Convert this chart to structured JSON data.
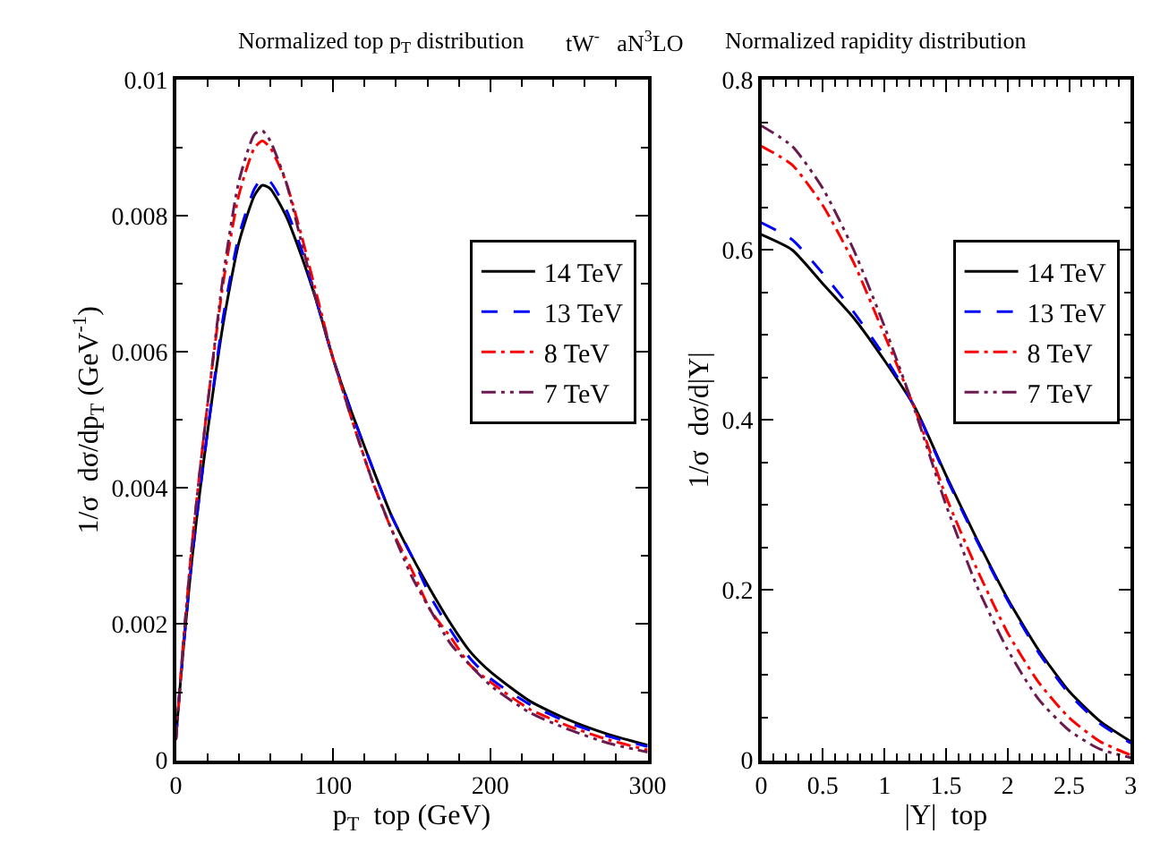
{
  "chart_data": [
    {
      "type": "line",
      "title": "Normalized top p$_{T}$ distribution",
      "annotations": [
        "tW$^{-}$   aN$^{3}$LO"
      ],
      "xlabel": "p$_{T}$  top (GeV)",
      "ylabel": "1/σ  dσ/dp$_{T}$ (GeV$^{-1}$)",
      "x": [
        0,
        2,
        5,
        10,
        15,
        20,
        30,
        40,
        50,
        55,
        60,
        70,
        80,
        90,
        100,
        112,
        125,
        137,
        150,
        162,
        175,
        187,
        200,
        225,
        250,
        275,
        300
      ],
      "series": [
        {
          "name": "14 TeV",
          "color": "#000000",
          "line_style": "solid",
          "values": [
            0.0003,
            0.0009,
            0.0017,
            0.0029,
            0.0039,
            0.0048,
            0.0064,
            0.0076,
            0.0083,
            0.00845,
            0.0084,
            0.008,
            0.0074,
            0.0067,
            0.0059,
            0.0051,
            0.0043,
            0.0036,
            0.003,
            0.0025,
            0.002,
            0.0016,
            0.0013,
            0.00087,
            0.00059,
            0.00038,
            0.00022
          ]
        },
        {
          "name": "13 TeV",
          "color": "#0000ff",
          "line_style": "dashed",
          "values": [
            0.0003,
            0.0009,
            0.0017,
            0.0029,
            0.0039,
            0.0048,
            0.0065,
            0.0077,
            0.0084,
            0.00855,
            0.0085,
            0.0081,
            0.0075,
            0.0067,
            0.0059,
            0.0051,
            0.0043,
            0.0036,
            0.003,
            0.0024,
            0.0019,
            0.0015,
            0.0012,
            0.00082,
            0.00055,
            0.00035,
            0.0002
          ]
        },
        {
          "name": "8 TeV",
          "color": "#ff0000",
          "line_style": "dashdot",
          "values": [
            0.0003,
            0.0009,
            0.0018,
            0.0031,
            0.0042,
            0.0052,
            0.007,
            0.0083,
            0.009,
            0.0091,
            0.009,
            0.0085,
            0.0077,
            0.0068,
            0.0059,
            0.005,
            0.0041,
            0.0034,
            0.0028,
            0.0022,
            0.0018,
            0.0014,
            0.00115,
            0.00075,
            0.0005,
            0.0003,
            0.00015
          ]
        },
        {
          "name": "7 TeV",
          "color": "#6b1a50",
          "line_style": "dashdotdot",
          "values": [
            0.0003,
            0.0009,
            0.0018,
            0.0031,
            0.0042,
            0.0052,
            0.0071,
            0.0085,
            0.0092,
            0.00925,
            0.0091,
            0.0085,
            0.0076,
            0.0067,
            0.0059,
            0.005,
            0.0041,
            0.0034,
            0.0027,
            0.0022,
            0.0017,
            0.0014,
            0.0011,
            0.0007,
            0.00045,
            0.00025,
            0.00012
          ]
        }
      ],
      "xlim": [
        0,
        300
      ],
      "xticks": [
        0,
        100,
        200,
        300
      ],
      "ylim": [
        0,
        0.01
      ],
      "yticks": [
        0,
        0.002,
        0.004,
        0.006,
        0.008,
        0.01
      ],
      "legend": "top right"
    },
    {
      "type": "line",
      "title": "Normalized rapidity distribution",
      "xlabel": "|Y|  top",
      "ylabel": "1/σ  dσ/d|Y|",
      "x": [
        0,
        0.25,
        0.5,
        0.75,
        1,
        1.25,
        1.5,
        1.75,
        2,
        2.25,
        2.5,
        2.75,
        3
      ],
      "series": [
        {
          "name": "14 TeV",
          "color": "#000000",
          "line_style": "solid",
          "values": [
            0.618,
            0.6,
            0.56,
            0.52,
            0.47,
            0.414,
            0.335,
            0.26,
            0.19,
            0.13,
            0.081,
            0.046,
            0.022
          ]
        },
        {
          "name": "13 TeV",
          "color": "#0000ff",
          "line_style": "dashed",
          "values": [
            0.632,
            0.612,
            0.572,
            0.527,
            0.475,
            0.414,
            0.333,
            0.258,
            0.188,
            0.127,
            0.078,
            0.043,
            0.02
          ]
        },
        {
          "name": "8 TeV",
          "color": "#ff0000",
          "line_style": "dashdot",
          "values": [
            0.722,
            0.7,
            0.652,
            0.585,
            0.5,
            0.412,
            0.31,
            0.225,
            0.15,
            0.092,
            0.05,
            0.022,
            0.006
          ]
        },
        {
          "name": "7 TeV",
          "color": "#6b1a50",
          "line_style": "dashdotdot",
          "values": [
            0.746,
            0.722,
            0.672,
            0.6,
            0.51,
            0.41,
            0.3,
            0.205,
            0.13,
            0.072,
            0.035,
            0.013,
            0.003
          ]
        }
      ],
      "xlim": [
        0,
        3
      ],
      "xticks": [
        0,
        0.5,
        1,
        1.5,
        2,
        2.5,
        3
      ],
      "ylim": [
        0,
        0.8
      ],
      "yticks": [
        0,
        0.2,
        0.4,
        0.6,
        0.8
      ],
      "legend": "top right"
    }
  ]
}
